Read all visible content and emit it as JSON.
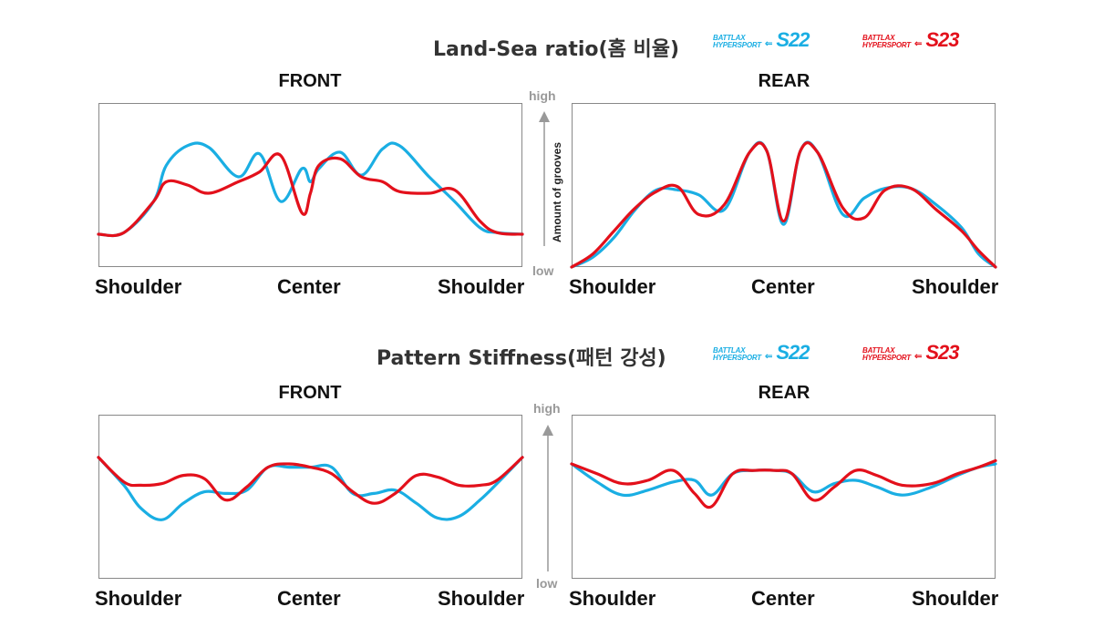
{
  "colors": {
    "s22": "#1aaee3",
    "s23": "#e3101b",
    "axis": "#999999",
    "box": "#888888"
  },
  "legend": [
    {
      "brand_line1": "BATTLAX",
      "brand_line2": "HYPERSPORT",
      "arrow": "⇐",
      "model": "S22",
      "color": "#1aaee3"
    },
    {
      "brand_line1": "BATTLAX",
      "brand_line2": "HYPERSPORT",
      "arrow": "⇐",
      "model": "S23",
      "color": "#e3101b"
    }
  ],
  "land_sea": {
    "title": "Land-Sea ratio(홈 비율)",
    "front_title": "FRONT",
    "rear_title": "REAR",
    "axis_high": "high",
    "axis_low": "low",
    "axis_name": "Amount of grooves",
    "x_labels": [
      "Shoulder",
      "Center",
      "Shoulder"
    ]
  },
  "stiffness": {
    "title": "Pattern Stiffness(패턴 강성)",
    "front_title": "FRONT",
    "rear_title": "REAR",
    "axis_high": "high",
    "axis_low": "low",
    "x_labels": [
      "Shoulder",
      "Center",
      "Shoulder"
    ]
  },
  "chart_data": [
    {
      "type": "line",
      "title": "Land-Sea ratio(홈 비율) FRONT",
      "ylabel": "Amount of grooves",
      "x_categories": [
        "Shoulder",
        "Center",
        "Shoulder"
      ],
      "xlim": [
        0,
        100
      ],
      "ylim": [
        0,
        100
      ],
      "series": [
        {
          "name": "S22",
          "x": [
            0,
            6,
            13,
            16,
            21,
            26,
            33,
            38,
            43,
            48,
            50,
            52,
            57,
            62,
            67,
            71,
            78,
            84,
            90,
            94,
            100
          ],
          "y": [
            20,
            21,
            40,
            62,
            74,
            73,
            55,
            69,
            40,
            60,
            52,
            60,
            70,
            56,
            72,
            74,
            55,
            40,
            24,
            21,
            20
          ]
        },
        {
          "name": "S23",
          "x": [
            0,
            6,
            13,
            16,
            21,
            26,
            33,
            38,
            43,
            48,
            50,
            52,
            57,
            62,
            67,
            71,
            78,
            84,
            90,
            94,
            100
          ],
          "y": [
            20,
            21,
            40,
            52,
            50,
            45,
            52,
            58,
            68,
            33,
            45,
            62,
            66,
            55,
            52,
            46,
            45,
            47,
            28,
            21,
            20
          ]
        }
      ]
    },
    {
      "type": "line",
      "title": "Land-Sea ratio(홈 비율) REAR",
      "ylabel": "Amount of grooves",
      "x_categories": [
        "Shoulder",
        "Center",
        "Shoulder"
      ],
      "xlim": [
        0,
        100
      ],
      "ylim": [
        0,
        100
      ],
      "series": [
        {
          "name": "S22",
          "x": [
            0,
            5,
            10,
            15,
            20,
            25,
            30,
            36,
            42,
            46,
            50,
            54,
            58,
            64,
            69,
            74,
            80,
            86,
            92,
            96,
            100
          ],
          "y": [
            0,
            6,
            18,
            35,
            47,
            47,
            44,
            35,
            70,
            71,
            26,
            71,
            70,
            32,
            42,
            48,
            48,
            38,
            24,
            8,
            0
          ]
        },
        {
          "name": "S23",
          "x": [
            0,
            5,
            10,
            15,
            20,
            25,
            30,
            36,
            42,
            46,
            50,
            54,
            58,
            64,
            69,
            74,
            80,
            86,
            92,
            96,
            100
          ],
          "y": [
            0,
            8,
            22,
            36,
            46,
            49,
            32,
            38,
            70,
            71,
            28,
            71,
            70,
            36,
            30,
            47,
            48,
            35,
            22,
            10,
            0
          ]
        }
      ]
    },
    {
      "type": "line",
      "title": "Pattern Stiffness(패턴 강성) FRONT",
      "x_categories": [
        "Shoulder",
        "Center",
        "Shoulder"
      ],
      "xlim": [
        0,
        100
      ],
      "ylim": [
        0,
        100
      ],
      "series": [
        {
          "name": "S22",
          "x": [
            0,
            6,
            10,
            15,
            20,
            25,
            30,
            35,
            40,
            45,
            50,
            55,
            60,
            65,
            70,
            75,
            80,
            85,
            90,
            94,
            100
          ],
          "y": [
            74,
            57,
            43,
            36,
            46,
            53,
            52,
            54,
            68,
            68,
            68,
            68,
            52,
            52,
            54,
            46,
            37,
            38,
            48,
            58,
            74
          ]
        },
        {
          "name": "S23",
          "x": [
            0,
            6,
            10,
            15,
            20,
            25,
            30,
            35,
            40,
            45,
            50,
            55,
            60,
            65,
            70,
            75,
            80,
            85,
            90,
            94,
            100
          ],
          "y": [
            74,
            59,
            57,
            58,
            63,
            61,
            48,
            56,
            68,
            70,
            68,
            64,
            53,
            46,
            52,
            63,
            62,
            57,
            57,
            60,
            74
          ]
        }
      ]
    },
    {
      "type": "line",
      "title": "Pattern Stiffness(패턴 강성) REAR",
      "x_categories": [
        "Shoulder",
        "Center",
        "Shoulder"
      ],
      "xlim": [
        0,
        100
      ],
      "ylim": [
        0,
        100
      ],
      "series": [
        {
          "name": "S22",
          "x": [
            0,
            6,
            12,
            18,
            24,
            29,
            33,
            38,
            43,
            48,
            52,
            57,
            62,
            67,
            72,
            78,
            85,
            91,
            96,
            100
          ],
          "y": [
            70,
            59,
            51,
            54,
            59,
            60,
            51,
            64,
            66,
            66,
            64,
            53,
            58,
            60,
            56,
            51,
            56,
            63,
            68,
            70
          ]
        },
        {
          "name": "S23",
          "x": [
            0,
            6,
            12,
            18,
            24,
            29,
            33,
            38,
            43,
            48,
            52,
            57,
            62,
            67,
            72,
            78,
            85,
            91,
            96,
            100
          ],
          "y": [
            70,
            64,
            58,
            60,
            66,
            52,
            44,
            64,
            66,
            66,
            64,
            48,
            56,
            66,
            63,
            57,
            58,
            64,
            68,
            72
          ]
        }
      ]
    }
  ]
}
